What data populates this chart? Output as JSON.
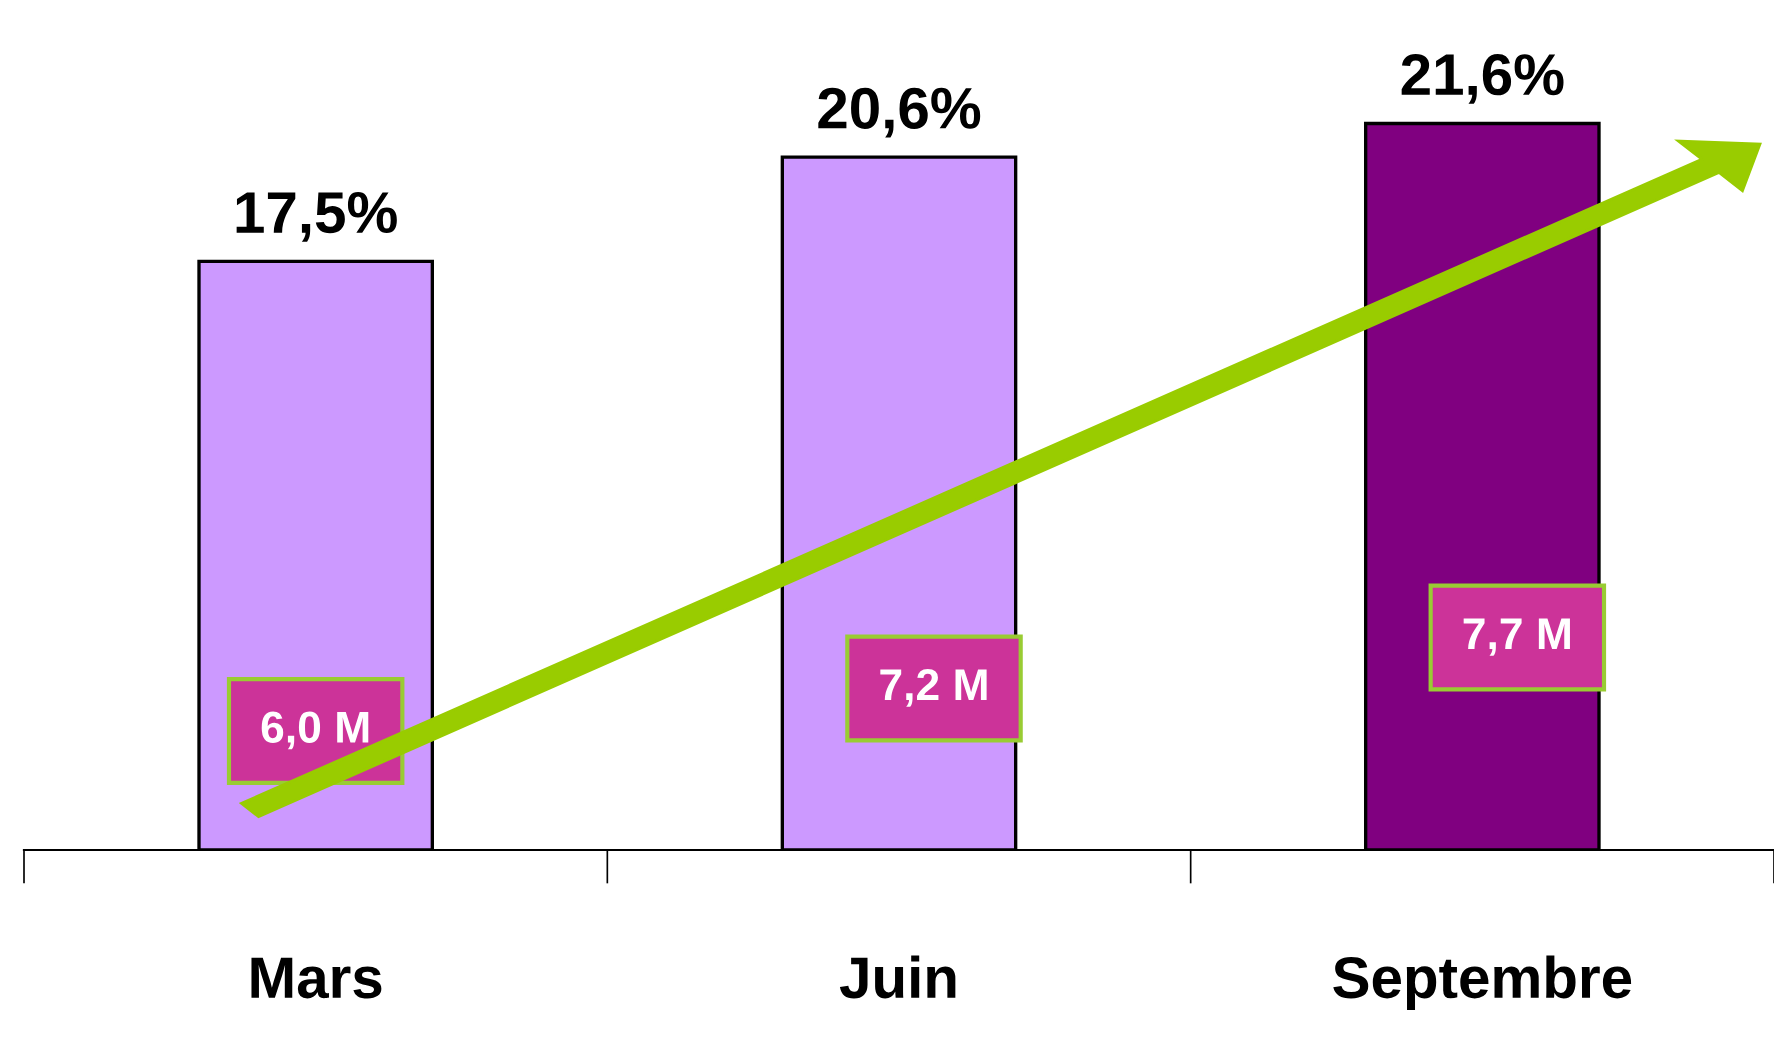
{
  "chart_data": {
    "type": "bar",
    "categories": [
      "Mars",
      "Juin",
      "Septembre"
    ],
    "values": [
      17.5,
      20.6,
      21.6
    ],
    "colors": [
      "#cc99ff",
      "#cc99ff",
      "#800080"
    ],
    "value_labels": [
      "17,5%",
      "20,6%",
      "21,6%"
    ],
    "tick_labels": "x",
    "grid": false,
    "legend": false,
    "annotations": [
      "6,0 M",
      "7,2 M",
      "7,7 M"
    ]
  }
}
